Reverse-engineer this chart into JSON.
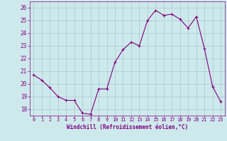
{
  "x": [
    0,
    1,
    2,
    3,
    4,
    5,
    6,
    7,
    8,
    9,
    10,
    11,
    12,
    13,
    14,
    15,
    16,
    17,
    18,
    19,
    20,
    21,
    22,
    23
  ],
  "y": [
    20.7,
    20.3,
    19.7,
    19.0,
    18.7,
    18.7,
    17.7,
    17.6,
    19.6,
    19.6,
    21.7,
    22.7,
    23.3,
    23.0,
    25.0,
    25.8,
    25.4,
    25.5,
    25.1,
    24.4,
    25.3,
    22.8,
    19.8,
    18.6
  ],
  "line_color": "#800080",
  "marker": "+",
  "marker_size": 3,
  "marker_linewidth": 0.8,
  "line_width": 0.8,
  "xlim": [
    -0.5,
    23.5
  ],
  "ylim": [
    17.5,
    26.5
  ],
  "yticks": [
    18,
    19,
    20,
    21,
    22,
    23,
    24,
    25,
    26
  ],
  "xticks": [
    0,
    1,
    2,
    3,
    4,
    5,
    6,
    7,
    8,
    9,
    10,
    11,
    12,
    13,
    14,
    15,
    16,
    17,
    18,
    19,
    20,
    21,
    22,
    23
  ],
  "xlabel": "Windchill (Refroidissement éolien,°C)",
  "background_color": "#cee9ec",
  "grid_color": "#aac8cc",
  "tick_color": "#800080",
  "label_color": "#800080",
  "xlabel_fontsize": 5.5,
  "ytick_fontsize": 5.5,
  "xtick_fontsize": 5.0
}
